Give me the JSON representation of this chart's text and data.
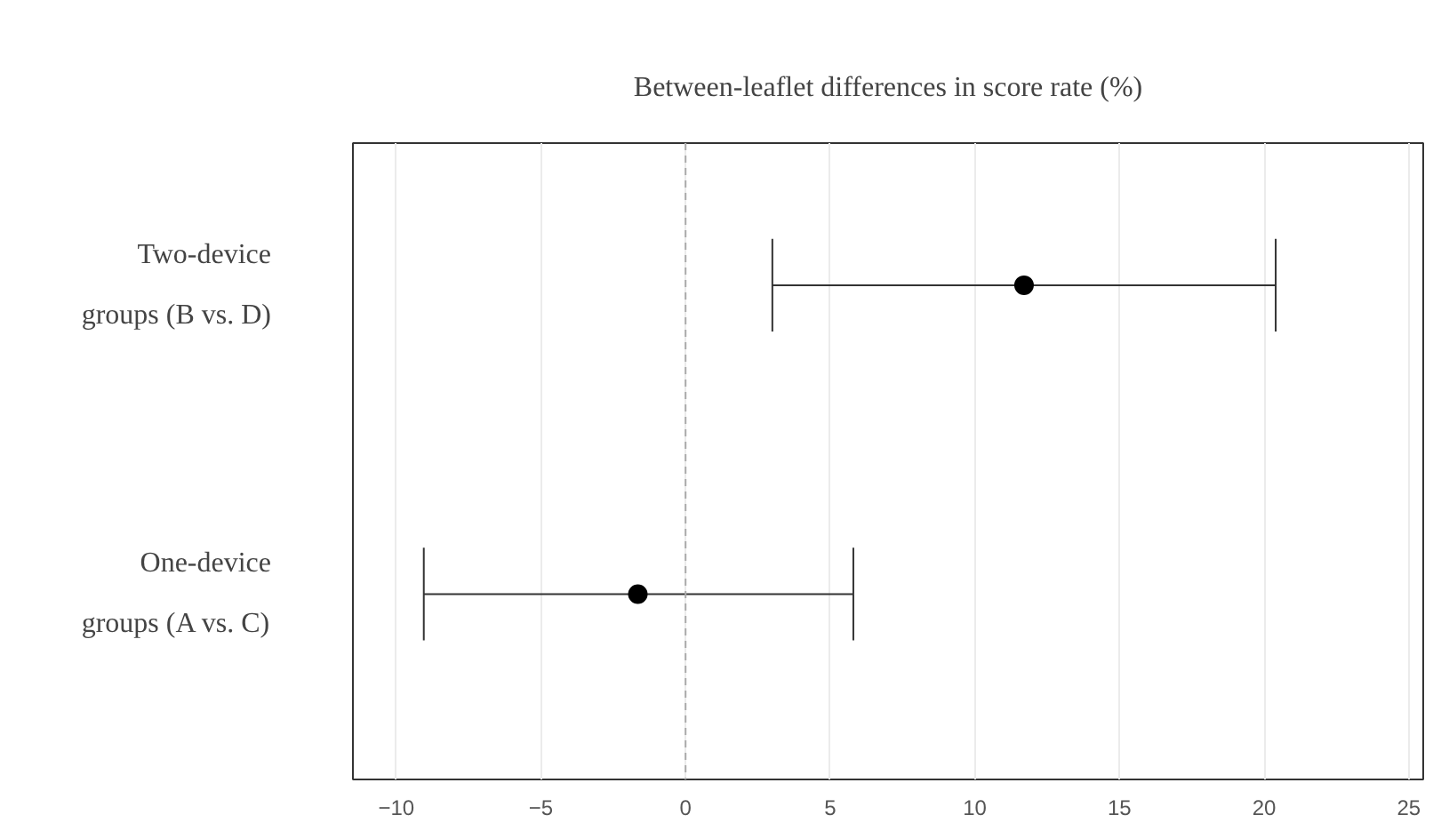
{
  "chart_data": {
    "type": "scatter",
    "orientation": "horizontal",
    "title": "Between-leaflet differences in score rate (%)",
    "categories": [
      "Two-device groups (B vs. D)",
      "One-device groups (A vs. C)"
    ],
    "values": [
      11.7,
      -1.65
    ],
    "errors": [
      [
        3.0,
        20.4
      ],
      [
        -9.05,
        5.8
      ]
    ],
    "color": "#000000",
    "marker": "circle",
    "xlim": [
      -11.5,
      25.5
    ],
    "xticks": [
      -10,
      -5,
      0,
      5,
      10,
      15,
      20,
      25
    ],
    "grid": "x",
    "ref_lines": [
      {
        "axis": "x",
        "value": 0,
        "line_style": "dashed",
        "color": "#aaaaaa"
      }
    ]
  }
}
